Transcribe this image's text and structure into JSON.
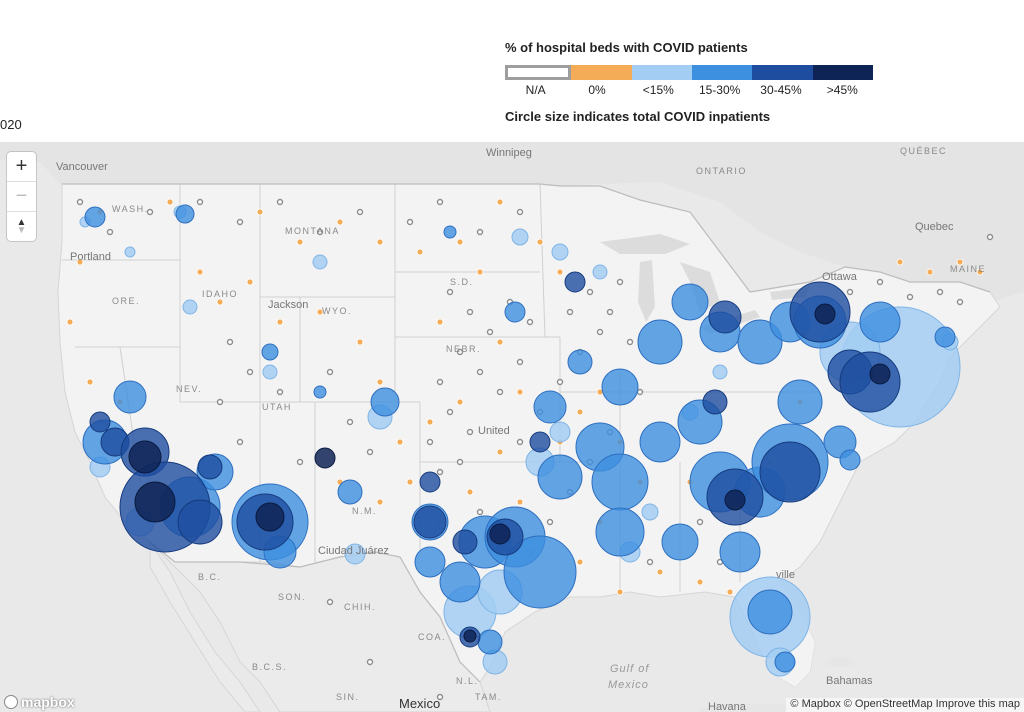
{
  "header": {
    "date_fragment": "020"
  },
  "legend": {
    "title": "% of hospital beds with COVID patients",
    "categories": [
      {
        "label": "N/A",
        "color": "#ffffff",
        "border": "#9e9e9e"
      },
      {
        "label": "0%",
        "color": "#f5ac56"
      },
      {
        "label": "<15%",
        "color": "#a3cdf2"
      },
      {
        "label": "15-30%",
        "color": "#3d8fe0"
      },
      {
        "label": "30-45%",
        "color": "#1e4da0"
      },
      {
        "label": ">45%",
        "color": "#0f2456"
      }
    ],
    "size_note": "Circle size indicates total COVID inpatients"
  },
  "map": {
    "labels": {
      "vancouver": "Vancouver",
      "winnipeg": "Winnipeg",
      "ontario": "ONTARIO",
      "quebec_province": "QUÉBEC",
      "quebec_city": "Quebec",
      "ottawa": "Ottawa",
      "washington": "WASH.",
      "montana": "MONTANA",
      "portland": "Portland",
      "oregon": "ORE.",
      "idaho": "IDAHO",
      "jackson": "Jackson",
      "wyoming": "WYO.",
      "nebraska": "NEBR.",
      "nevada": "NEV.",
      "utah": "UTAH",
      "united_states": "United",
      "new_mexico": "N.M.",
      "ciudad_juarez": "Ciudad Juárez",
      "baja": "B.C.",
      "sonora": "SON.",
      "chihuahua": "CHIH.",
      "coahuila": "COA.",
      "bcs": "B.C.S.",
      "nuevo_leon": "N.L.",
      "tamaulipas": "TAM.",
      "sinaloa": "SIN.",
      "gulf": "Gulf of",
      "mexico_water": "Mexico",
      "bahamas": "Bahamas",
      "havana": "Havana",
      "sd": "S.D.",
      "maine": "MAINE",
      "ville": "ville"
    },
    "country_label": "Mexico",
    "zoom_in": "+",
    "zoom_out": "−",
    "compass_n": "▲",
    "compass_s": "▼",
    "logo_text": "mapbox",
    "attribution": "© Mapbox © OpenStreetMap Improve this map"
  }
}
